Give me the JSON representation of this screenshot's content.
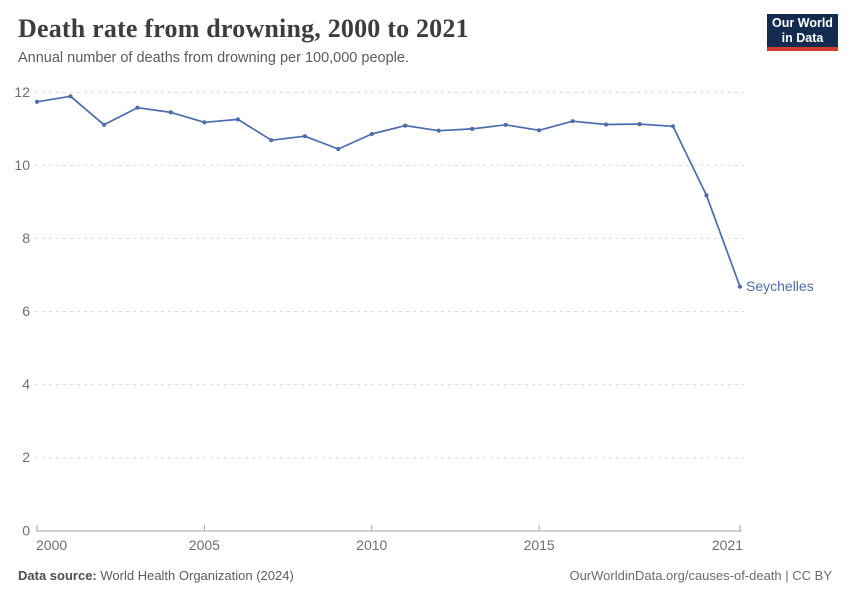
{
  "header": {
    "title": "Death rate from drowning, 2000 to 2021",
    "subtitle": "Annual number of deaths from drowning per 100,000 people."
  },
  "logo": {
    "line1": "Our World",
    "line2": "in Data",
    "bg_color": "#122b4e",
    "underline_color": "#d23a2e"
  },
  "chart_data": {
    "type": "line",
    "title": "Death rate from drowning, 2000 to 2021",
    "ylabel": "Annual deaths from drowning per 100,000 people",
    "ylim": [
      0,
      12
    ],
    "yticks": [
      0,
      2,
      4,
      6,
      8,
      10,
      12
    ],
    "xticks": [
      2000,
      2005,
      2010,
      2015,
      2021
    ],
    "grid": "horizontal-dashed",
    "legend_position": "end-of-line-label",
    "x": [
      2000,
      2001,
      2002,
      2003,
      2004,
      2005,
      2006,
      2007,
      2008,
      2009,
      2010,
      2011,
      2012,
      2013,
      2014,
      2015,
      2016,
      2017,
      2018,
      2019,
      2020,
      2021
    ],
    "series": [
      {
        "name": "Seychelles",
        "color": "#4c6cab",
        "values": [
          11.74,
          11.89,
          11.11,
          11.58,
          11.45,
          11.18,
          11.26,
          10.69,
          10.8,
          10.45,
          10.86,
          11.09,
          10.95,
          11.0,
          11.11,
          10.96,
          11.21,
          11.12,
          11.13,
          11.07,
          9.18,
          6.68
        ]
      }
    ],
    "axis_color": "#a5a5a5",
    "gridline_color": "#dcdcdc",
    "tick_label_color": "#6e6e6e"
  },
  "footer": {
    "source_label": "Data source:",
    "source": "World Health Organization (2024)",
    "credit": "OurWorldinData.org/causes-of-death | CC BY"
  }
}
